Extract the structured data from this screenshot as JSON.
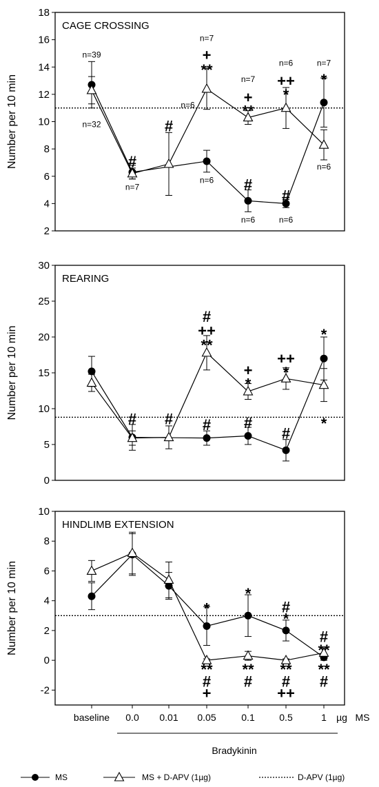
{
  "chart_data": {
    "type": "line",
    "x_categories": [
      "baseline",
      "0.0",
      "0.01",
      "0.05",
      "0.1",
      "0.5",
      "1"
    ],
    "x_unit": "µg",
    "x_unit_suffix": "MS",
    "x_group_label": "Bradykinin",
    "ylabel": "Number per 10 min",
    "legend": {
      "position": "bottom",
      "items": [
        {
          "label": "MS",
          "marker": "filled-circle"
        },
        {
          "label": "MS + D-APV (1µg)",
          "marker": "open-triangle"
        },
        {
          "label": "D-APV (1µg)",
          "marker": "dotted-line"
        }
      ]
    },
    "panels": [
      {
        "title": "CAGE CROSSING",
        "ylim": [
          2,
          18
        ],
        "yticks": [
          "2",
          "4",
          "6",
          "8",
          "10",
          "12",
          "14",
          "16",
          "18"
        ],
        "dapv_level": 11,
        "series": [
          {
            "key": "ms",
            "values": [
              12.7,
              6.3,
              null,
              7.1,
              4.2,
              4.0,
              11.4
            ],
            "errors": [
              1.7,
              0.5,
              null,
              0.8,
              0.8,
              0.3,
              1.8
            ]
          },
          {
            "key": "msdapv",
            "values": [
              12.3,
              6.2,
              6.9,
              12.4,
              10.3,
              11.0,
              8.3
            ],
            "errors": [
              1.0,
              0.4,
              2.3,
              1.5,
              0.5,
              1.5,
              1.1
            ]
          }
        ],
        "annotations": [
          {
            "text": "n=39",
            "x": 0,
            "y": 14.9,
            "cls": "ann"
          },
          {
            "text": "n=32",
            "x": 0,
            "y": 9.8,
            "cls": "ann"
          },
          {
            "text": "#",
            "x": 1,
            "y": 7.1,
            "cls": "sym"
          },
          {
            "text": "n=7",
            "x": 1,
            "y": 5.2,
            "cls": "ann"
          },
          {
            "text": "#",
            "x": 2,
            "y": 9.7,
            "cls": "sym"
          },
          {
            "text": "n=6",
            "x": 2.5,
            "y": 11.2,
            "cls": "ann"
          },
          {
            "text": "n=7",
            "x": 3,
            "y": 16.1,
            "cls": "ann"
          },
          {
            "text": "+",
            "x": 3,
            "y": 14.9,
            "cls": "sym"
          },
          {
            "text": "**",
            "x": 3,
            "y": 13.8,
            "cls": "sym"
          },
          {
            "text": "n=6",
            "x": 3,
            "y": 5.7,
            "cls": "ann"
          },
          {
            "text": "n=7",
            "x": 4,
            "y": 13.1,
            "cls": "ann"
          },
          {
            "text": "+",
            "x": 4,
            "y": 11.8,
            "cls": "sym"
          },
          {
            "text": "**",
            "x": 4,
            "y": 10.8,
            "cls": "sym"
          },
          {
            "text": "#",
            "x": 4,
            "y": 5.4,
            "cls": "sym"
          },
          {
            "text": "n=6",
            "x": 4,
            "y": 2.8,
            "cls": "ann"
          },
          {
            "text": "n=6",
            "x": 5,
            "y": 14.3,
            "cls": "ann"
          },
          {
            "text": "++",
            "x": 5,
            "y": 13.0,
            "cls": "sym"
          },
          {
            "text": "*",
            "x": 5,
            "y": 12.0,
            "cls": "sym"
          },
          {
            "text": "#",
            "x": 5,
            "y": 4.6,
            "cls": "sym"
          },
          {
            "text": "n=6",
            "x": 5,
            "y": 2.8,
            "cls": "ann"
          },
          {
            "text": "n=7",
            "x": 6,
            "y": 14.3,
            "cls": "ann"
          },
          {
            "text": "*",
            "x": 6,
            "y": 13.1,
            "cls": "sym"
          },
          {
            "text": "n=6",
            "x": 6,
            "y": 6.7,
            "cls": "ann"
          }
        ]
      },
      {
        "title": "REARING",
        "ylim": [
          0,
          30
        ],
        "yticks": [
          "0",
          "5",
          "10",
          "15",
          "20",
          "25",
          "30"
        ],
        "dapv_level": 8.8,
        "series": [
          {
            "key": "ms",
            "values": [
              15.2,
              6.0,
              null,
              5.9,
              6.2,
              4.2,
              17.0
            ],
            "errors": [
              2.1,
              1.8,
              null,
              1.0,
              1.2,
              1.5,
              3.0
            ]
          },
          {
            "key": "msdapv",
            "values": [
              13.6,
              5.9,
              6.0,
              17.8,
              12.4,
              14.2,
              13.3
            ],
            "errors": [
              1.2,
              1.0,
              1.6,
              2.4,
              1.1,
              1.5,
              2.3
            ]
          }
        ],
        "annotations": [
          {
            "text": "#",
            "x": 1,
            "y": 8.6,
            "cls": "sym"
          },
          {
            "text": "#",
            "x": 2,
            "y": 8.6,
            "cls": "sym"
          },
          {
            "text": "#",
            "x": 3,
            "y": 22.9,
            "cls": "sym"
          },
          {
            "text": "++",
            "x": 3,
            "y": 20.9,
            "cls": "sym"
          },
          {
            "text": "**",
            "x": 3,
            "y": 18.9,
            "cls": "sym"
          },
          {
            "text": "#",
            "x": 3,
            "y": 7.8,
            "cls": "sym"
          },
          {
            "text": "+",
            "x": 4,
            "y": 15.4,
            "cls": "sym"
          },
          {
            "text": "*",
            "x": 4,
            "y": 13.5,
            "cls": "sym"
          },
          {
            "text": "#",
            "x": 4,
            "y": 8.1,
            "cls": "sym"
          },
          {
            "text": "++",
            "x": 5,
            "y": 17.0,
            "cls": "sym"
          },
          {
            "text": "*",
            "x": 5,
            "y": 15.1,
            "cls": "sym"
          },
          {
            "text": "#",
            "x": 5,
            "y": 6.6,
            "cls": "sym"
          },
          {
            "text": "*",
            "x": 6,
            "y": 20.4,
            "cls": "sym"
          },
          {
            "text": "*",
            "x": 6,
            "y": 8.0,
            "cls": "sym"
          }
        ]
      },
      {
        "title": "HINDLIMB EXTENSION",
        "ylim": [
          -3,
          10
        ],
        "yticks": [
          "-2",
          "0",
          "2",
          "4",
          "6",
          "8",
          "10"
        ],
        "dapv_level": 3.0,
        "series": [
          {
            "key": "ms",
            "values": [
              4.3,
              7.1,
              5.0,
              2.3,
              3.0,
              2.0,
              0.2
            ],
            "errors": [
              0.9,
              1.4,
              0.9,
              1.3,
              1.4,
              0.7,
              0.2
            ]
          },
          {
            "key": "msdapv",
            "values": [
              6.0,
              7.2,
              5.4,
              0.0,
              0.3,
              0.0,
              0.5
            ],
            "errors": [
              0.7,
              1.4,
              1.2,
              0.1,
              0.3,
              0.1,
              0.3
            ]
          }
        ],
        "annotations": [
          {
            "text": "*",
            "x": 3,
            "y": 3.5,
            "cls": "sym"
          },
          {
            "text": "**",
            "x": 3,
            "y": -0.6,
            "cls": "sym"
          },
          {
            "text": "#",
            "x": 3,
            "y": -1.4,
            "cls": "sym"
          },
          {
            "text": "+",
            "x": 3,
            "y": -2.2,
            "cls": "sym"
          },
          {
            "text": "*",
            "x": 4,
            "y": 4.5,
            "cls": "sym"
          },
          {
            "text": "**",
            "x": 4,
            "y": -0.6,
            "cls": "sym"
          },
          {
            "text": "#",
            "x": 4,
            "y": -1.4,
            "cls": "sym"
          },
          {
            "text": "#",
            "x": 5,
            "y": 3.6,
            "cls": "sym"
          },
          {
            "text": "*",
            "x": 5,
            "y": 2.8,
            "cls": "sym"
          },
          {
            "text": "**",
            "x": 5,
            "y": -0.6,
            "cls": "sym"
          },
          {
            "text": "#",
            "x": 5,
            "y": -1.4,
            "cls": "sym"
          },
          {
            "text": "++",
            "x": 5,
            "y": -2.2,
            "cls": "sym"
          },
          {
            "text": "#",
            "x": 6,
            "y": 1.6,
            "cls": "sym"
          },
          {
            "text": "**",
            "x": 6,
            "y": 0.7,
            "cls": "sym"
          },
          {
            "text": "**",
            "x": 6,
            "y": -0.6,
            "cls": "sym"
          },
          {
            "text": "#",
            "x": 6,
            "y": -1.4,
            "cls": "sym"
          }
        ]
      }
    ]
  }
}
